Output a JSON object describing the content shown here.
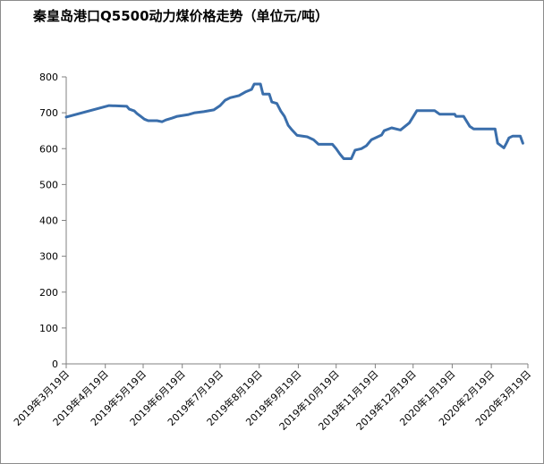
{
  "colors": {
    "line": "#3a6eab",
    "axis": "#808080",
    "text": "#000000"
  },
  "chart_data": {
    "type": "line",
    "title": "秦皇岛港口Q5500动力煤价格走势（单位元/吨）",
    "xlabel": "",
    "ylabel": "",
    "ylim": [
      0,
      800
    ],
    "yticks": [
      0,
      100,
      200,
      300,
      400,
      500,
      600,
      700,
      800
    ],
    "x_axis_type": "date",
    "xlim": [
      "2019-03-19",
      "2020-03-19"
    ],
    "xtick_dates": [
      "2019-03-19",
      "2019-04-19",
      "2019-05-19",
      "2019-06-19",
      "2019-07-19",
      "2019-08-19",
      "2019-09-19",
      "2019-10-19",
      "2019-11-19",
      "2019-12-19",
      "2020-01-19",
      "2020-02-19",
      "2020-03-19"
    ],
    "xtick_labels": [
      "2019年3月19日",
      "2019年4月19日",
      "2019年5月19日",
      "2019年6月19日",
      "2019年7月19日",
      "2019年8月19日",
      "2019年9月19日",
      "2019年10月19日",
      "2019年11月19日",
      "2019年12月19日",
      "2020年1月19日",
      "2020年2月19日",
      "2020年3月19日"
    ],
    "grid": false,
    "legend": "none",
    "series": [
      {
        "name": "",
        "points": [
          [
            "2019-03-19",
            688
          ],
          [
            "2019-04-22",
            720
          ],
          [
            "2019-05-06",
            718
          ],
          [
            "2019-05-08",
            710
          ],
          [
            "2019-05-12",
            705
          ],
          [
            "2019-05-14",
            698
          ],
          [
            "2019-05-17",
            690
          ],
          [
            "2019-05-20",
            682
          ],
          [
            "2019-05-23",
            678
          ],
          [
            "2019-05-30",
            678
          ],
          [
            "2019-06-03",
            675
          ],
          [
            "2019-06-06",
            680
          ],
          [
            "2019-06-11",
            685
          ],
          [
            "2019-06-15",
            690
          ],
          [
            "2019-06-24",
            695
          ],
          [
            "2019-06-29",
            700
          ],
          [
            "2019-07-06",
            703
          ],
          [
            "2019-07-14",
            708
          ],
          [
            "2019-07-19",
            720
          ],
          [
            "2019-07-23",
            735
          ],
          [
            "2019-07-27",
            742
          ],
          [
            "2019-08-03",
            748
          ],
          [
            "2019-08-08",
            758
          ],
          [
            "2019-08-13",
            765
          ],
          [
            "2019-08-15",
            780
          ],
          [
            "2019-08-20",
            780
          ],
          [
            "2019-08-22",
            752
          ],
          [
            "2019-08-27",
            752
          ],
          [
            "2019-08-29",
            730
          ],
          [
            "2019-09-02",
            726
          ],
          [
            "2019-09-05",
            705
          ],
          [
            "2019-09-08",
            690
          ],
          [
            "2019-09-11",
            665
          ],
          [
            "2019-09-14",
            652
          ],
          [
            "2019-09-18",
            637
          ],
          [
            "2019-09-26",
            633
          ],
          [
            "2019-10-01",
            625
          ],
          [
            "2019-10-05",
            612
          ],
          [
            "2019-10-16",
            612
          ],
          [
            "2019-10-19",
            600
          ],
          [
            "2019-10-22",
            585
          ],
          [
            "2019-10-25",
            572
          ],
          [
            "2019-10-31",
            572
          ],
          [
            "2019-11-03",
            596
          ],
          [
            "2019-11-08",
            600
          ],
          [
            "2019-11-12",
            608
          ],
          [
            "2019-11-16",
            625
          ],
          [
            "2019-11-24",
            638
          ],
          [
            "2019-11-26",
            650
          ],
          [
            "2019-12-02",
            658
          ],
          [
            "2019-12-09",
            652
          ],
          [
            "2019-12-16",
            672
          ],
          [
            "2019-12-21",
            700
          ],
          [
            "2019-12-22",
            706
          ],
          [
            "2020-01-05",
            706
          ],
          [
            "2020-01-09",
            696
          ],
          [
            "2020-01-21",
            696
          ],
          [
            "2020-01-22",
            690
          ],
          [
            "2020-01-28",
            690
          ],
          [
            "2020-02-02",
            662
          ],
          [
            "2020-02-05",
            655
          ],
          [
            "2020-02-13",
            655
          ],
          [
            "2020-02-22",
            655
          ],
          [
            "2020-02-24",
            615
          ],
          [
            "2020-02-29",
            602
          ],
          [
            "2020-03-02",
            615
          ],
          [
            "2020-03-04",
            630
          ],
          [
            "2020-03-07",
            635
          ],
          [
            "2020-03-13",
            635
          ],
          [
            "2020-03-15",
            615
          ]
        ]
      }
    ]
  }
}
